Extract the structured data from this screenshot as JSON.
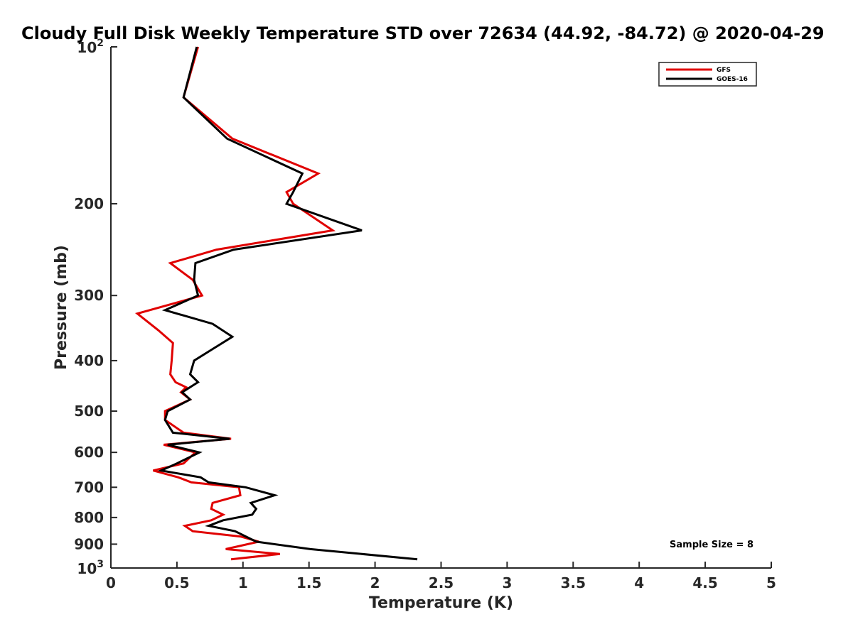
{
  "chart_data": {
    "type": "line",
    "title": "Cloudy Full Disk Weekly Temperature STD over 72634 (44.92, -84.72) @ 2020-04-29",
    "xlabel": "Temperature (K)",
    "ylabel": "Pressure (mb)",
    "xlim": [
      0,
      5
    ],
    "ylim": [
      100,
      1000
    ],
    "y_scale": "log",
    "y_reversed": true,
    "grid": false,
    "legend_position": "top-right",
    "x_ticks": [
      "0",
      "0.5",
      "1",
      "1.5",
      "2",
      "2.5",
      "3",
      "3.5",
      "4",
      "4.5",
      "5"
    ],
    "y_ticks": [
      {
        "value": 100,
        "base": "10",
        "exp": "2"
      },
      {
        "value": 200,
        "label": "200"
      },
      {
        "value": 300,
        "label": "300"
      },
      {
        "value": 400,
        "label": "400"
      },
      {
        "value": 500,
        "label": "500"
      },
      {
        "value": 600,
        "label": "600"
      },
      {
        "value": 700,
        "label": "700"
      },
      {
        "value": 800,
        "label": "800"
      },
      {
        "value": 900,
        "label": "900"
      },
      {
        "value": 1000,
        "base": "10",
        "exp": "3"
      }
    ],
    "annotation": "Sample Size = 8",
    "series": [
      {
        "name": "GFS",
        "color": "#e00000",
        "points": [
          [
            0.66,
            100
          ],
          [
            0.55,
            125
          ],
          [
            0.92,
            150
          ],
          [
            1.57,
            175
          ],
          [
            1.33,
            190
          ],
          [
            1.38,
            200
          ],
          [
            1.68,
            225
          ],
          [
            0.8,
            245
          ],
          [
            0.45,
            260
          ],
          [
            0.62,
            280
          ],
          [
            0.69,
            300
          ],
          [
            0.2,
            325
          ],
          [
            0.36,
            350
          ],
          [
            0.47,
            370
          ],
          [
            0.46,
            400
          ],
          [
            0.45,
            425
          ],
          [
            0.49,
            440
          ],
          [
            0.57,
            450
          ],
          [
            0.53,
            460
          ],
          [
            0.6,
            475
          ],
          [
            0.41,
            500
          ],
          [
            0.41,
            520
          ],
          [
            0.55,
            550
          ],
          [
            0.91,
            565
          ],
          [
            0.4,
            580
          ],
          [
            0.64,
            600
          ],
          [
            0.55,
            630
          ],
          [
            0.32,
            650
          ],
          [
            0.51,
            670
          ],
          [
            0.61,
            685
          ],
          [
            0.97,
            700
          ],
          [
            0.98,
            725
          ],
          [
            0.77,
            750
          ],
          [
            0.76,
            770
          ],
          [
            0.85,
            790
          ],
          [
            0.76,
            810
          ],
          [
            0.56,
            830
          ],
          [
            0.62,
            850
          ],
          [
            0.98,
            870
          ],
          [
            1.12,
            890
          ],
          [
            0.87,
            920
          ],
          [
            1.28,
            940
          ],
          [
            0.91,
            962
          ]
        ]
      },
      {
        "name": "GOES-16",
        "color": "#000000",
        "points": [
          [
            0.65,
            100
          ],
          [
            0.55,
            125
          ],
          [
            0.88,
            150
          ],
          [
            1.45,
            175
          ],
          [
            1.38,
            190
          ],
          [
            1.33,
            200
          ],
          [
            1.9,
            225
          ],
          [
            0.93,
            245
          ],
          [
            0.64,
            260
          ],
          [
            0.63,
            280
          ],
          [
            0.66,
            300
          ],
          [
            0.41,
            320
          ],
          [
            0.77,
            340
          ],
          [
            0.92,
            360
          ],
          [
            0.77,
            380
          ],
          [
            0.63,
            400
          ],
          [
            0.6,
            425
          ],
          [
            0.66,
            440
          ],
          [
            0.54,
            460
          ],
          [
            0.6,
            475
          ],
          [
            0.43,
            500
          ],
          [
            0.41,
            520
          ],
          [
            0.47,
            550
          ],
          [
            0.9,
            565
          ],
          [
            0.43,
            580
          ],
          [
            0.67,
            600
          ],
          [
            0.5,
            630
          ],
          [
            0.38,
            650
          ],
          [
            0.68,
            670
          ],
          [
            0.74,
            685
          ],
          [
            1.02,
            700
          ],
          [
            1.24,
            725
          ],
          [
            1.06,
            750
          ],
          [
            1.1,
            770
          ],
          [
            1.07,
            790
          ],
          [
            0.85,
            810
          ],
          [
            0.74,
            830
          ],
          [
            0.94,
            850
          ],
          [
            1.1,
            890
          ],
          [
            1.51,
            920
          ],
          [
            2.32,
            962
          ]
        ]
      }
    ]
  }
}
